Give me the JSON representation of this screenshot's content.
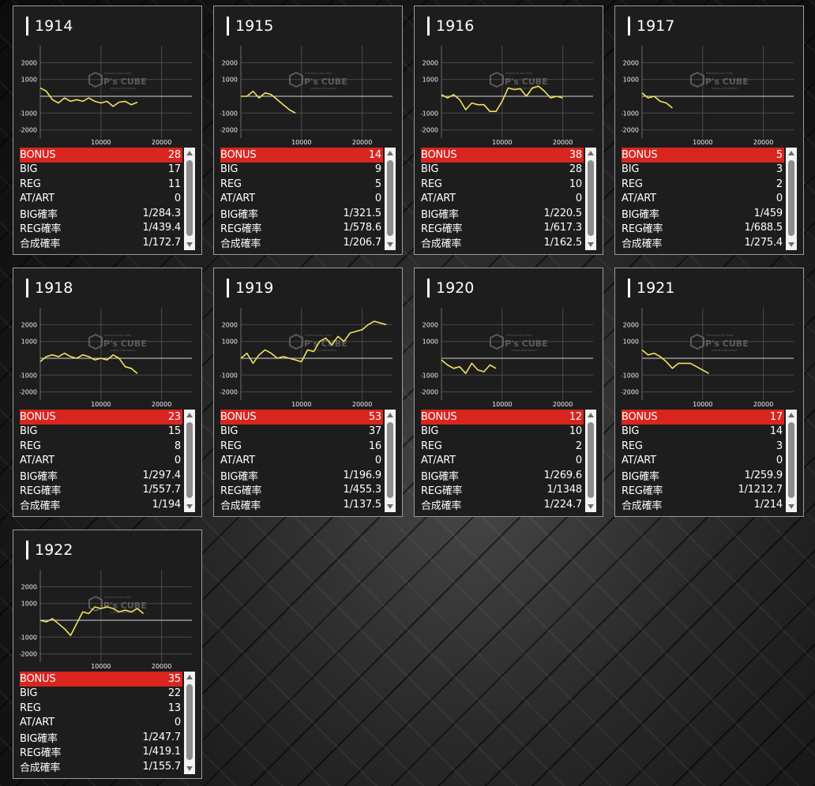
{
  "labels": {
    "bonus": "BONUS",
    "big": "BIG",
    "reg": "REG",
    "at_art": "AT/ART",
    "big_rate": "BIG確率",
    "reg_rate": "REG確率",
    "combined_rate": "合成確率"
  },
  "watermark": {
    "logo_text": "P's CUBE",
    "line1": "Published Slot Data",
    "line2": "makes information"
  },
  "chart_axes": {
    "y_ticks": [
      2000,
      1000,
      -1000,
      -2000
    ],
    "x_ticks": [
      10000,
      20000
    ],
    "xlim": [
      0,
      25000
    ],
    "ylim": [
      -3000,
      3000
    ]
  },
  "colors": {
    "bonus_bg": "#d9251e",
    "slump_line": "#f2e35a",
    "panel_bg": "#1d1d1d"
  },
  "machines": [
    {
      "number": "1914",
      "stats": {
        "bonus": "28",
        "big": "17",
        "reg": "11",
        "at_art": "0",
        "big_rate": "1/284.3",
        "reg_rate": "1/439.4",
        "combined_rate": "1/172.7"
      }
    },
    {
      "number": "1915",
      "stats": {
        "bonus": "14",
        "big": "9",
        "reg": "5",
        "at_art": "0",
        "big_rate": "1/321.5",
        "reg_rate": "1/578.6",
        "combined_rate": "1/206.7"
      }
    },
    {
      "number": "1916",
      "stats": {
        "bonus": "38",
        "big": "28",
        "reg": "10",
        "at_art": "0",
        "big_rate": "1/220.5",
        "reg_rate": "1/617.3",
        "combined_rate": "1/162.5"
      }
    },
    {
      "number": "1917",
      "stats": {
        "bonus": "5",
        "big": "3",
        "reg": "2",
        "at_art": "0",
        "big_rate": "1/459",
        "reg_rate": "1/688.5",
        "combined_rate": "1/275.4"
      }
    },
    {
      "number": "1918",
      "stats": {
        "bonus": "23",
        "big": "15",
        "reg": "8",
        "at_art": "0",
        "big_rate": "1/297.4",
        "reg_rate": "1/557.7",
        "combined_rate": "1/194"
      }
    },
    {
      "number": "1919",
      "stats": {
        "bonus": "53",
        "big": "37",
        "reg": "16",
        "at_art": "0",
        "big_rate": "1/196.9",
        "reg_rate": "1/455.3",
        "combined_rate": "1/137.5"
      }
    },
    {
      "number": "1920",
      "stats": {
        "bonus": "12",
        "big": "10",
        "reg": "2",
        "at_art": "0",
        "big_rate": "1/269.6",
        "reg_rate": "1/1348",
        "combined_rate": "1/224.7"
      }
    },
    {
      "number": "1921",
      "stats": {
        "bonus": "17",
        "big": "14",
        "reg": "3",
        "at_art": "0",
        "big_rate": "1/259.9",
        "reg_rate": "1/1212.7",
        "combined_rate": "1/214"
      }
    },
    {
      "number": "1922",
      "stats": {
        "bonus": "35",
        "big": "22",
        "reg": "13",
        "at_art": "0",
        "big_rate": "1/247.7",
        "reg_rate": "1/419.1",
        "combined_rate": "1/155.7"
      }
    }
  ],
  "chart_data": [
    {
      "type": "line",
      "series": [
        {
          "x": [
            0,
            1000,
            2000,
            3000,
            4000,
            5000,
            6000,
            7000,
            8000,
            9000,
            10000,
            11000,
            12000,
            13000,
            14000,
            15000,
            16000
          ],
          "y": [
            500,
            300,
            -200,
            -400,
            -100,
            -300,
            -200,
            -300,
            -100,
            -300,
            -400,
            -300,
            -600,
            -350,
            -300,
            -500,
            -350
          ]
        }
      ]
    },
    {
      "type": "line",
      "series": [
        {
          "x": [
            0,
            1000,
            2000,
            3000,
            4000,
            5000,
            6000,
            7000,
            8000,
            9000
          ],
          "y": [
            0,
            0,
            300,
            -100,
            200,
            100,
            -200,
            -500,
            -800,
            -1000
          ]
        }
      ]
    },
    {
      "type": "line",
      "series": [
        {
          "x": [
            0,
            1000,
            2000,
            3000,
            4000,
            5000,
            6000,
            7000,
            8000,
            9000,
            10000,
            11000,
            12000,
            13000,
            14000,
            15000,
            16000,
            17000,
            18000,
            19000,
            20000
          ],
          "y": [
            100,
            -100,
            100,
            -200,
            -800,
            -400,
            -500,
            -500,
            -900,
            -900,
            -300,
            500,
            400,
            450,
            0,
            500,
            600,
            300,
            -100,
            0,
            -100
          ]
        }
      ]
    },
    {
      "type": "line",
      "series": [
        {
          "x": [
            0,
            1000,
            2000,
            3000,
            4000,
            5000
          ],
          "y": [
            200,
            -100,
            0,
            -300,
            -400,
            -700
          ]
        }
      ]
    },
    {
      "type": "line",
      "series": [
        {
          "x": [
            0,
            1000,
            2000,
            3000,
            4000,
            5000,
            6000,
            7000,
            8000,
            9000,
            10000,
            11000,
            12000,
            13000,
            14000,
            15000,
            16000
          ],
          "y": [
            -200,
            100,
            200,
            100,
            300,
            100,
            0,
            200,
            100,
            -100,
            0,
            -100,
            200,
            0,
            -500,
            -600,
            -900
          ]
        }
      ]
    },
    {
      "type": "line",
      "series": [
        {
          "x": [
            0,
            1000,
            2000,
            3000,
            4000,
            5000,
            6000,
            7000,
            8000,
            9000,
            10000,
            11000,
            12000,
            13000,
            14000,
            15000,
            16000,
            17000,
            18000,
            19000,
            20000,
            21000,
            22000,
            23000,
            24000
          ],
          "y": [
            0,
            300,
            -300,
            200,
            500,
            300,
            0,
            100,
            0,
            -100,
            -200,
            500,
            400,
            1000,
            1200,
            800,
            1300,
            1000,
            1500,
            1600,
            1700,
            2000,
            2200,
            2100,
            2000
          ]
        }
      ]
    },
    {
      "type": "line",
      "series": [
        {
          "x": [
            0,
            1000,
            2000,
            3000,
            4000,
            5000,
            6000,
            7000,
            8000,
            9000
          ],
          "y": [
            -100,
            -400,
            -600,
            -500,
            -900,
            -300,
            -700,
            -800,
            -400,
            -600
          ]
        }
      ]
    },
    {
      "type": "line",
      "series": [
        {
          "x": [
            0,
            1000,
            2000,
            3000,
            4000,
            5000,
            6000,
            7000,
            8000,
            9000,
            10000,
            11000
          ],
          "y": [
            500,
            200,
            300,
            100,
            -200,
            -600,
            -300,
            -300,
            -300,
            -500,
            -700,
            -900
          ]
        }
      ]
    },
    {
      "type": "line",
      "series": [
        {
          "x": [
            0,
            1000,
            2000,
            3000,
            4000,
            5000,
            6000,
            7000,
            8000,
            9000,
            10000,
            11000,
            12000,
            13000,
            14000,
            15000,
            16000,
            17000
          ],
          "y": [
            0,
            -100,
            100,
            -200,
            -500,
            -900,
            -200,
            500,
            400,
            800,
            700,
            800,
            700,
            500,
            600,
            500,
            700,
            400
          ]
        }
      ]
    }
  ]
}
